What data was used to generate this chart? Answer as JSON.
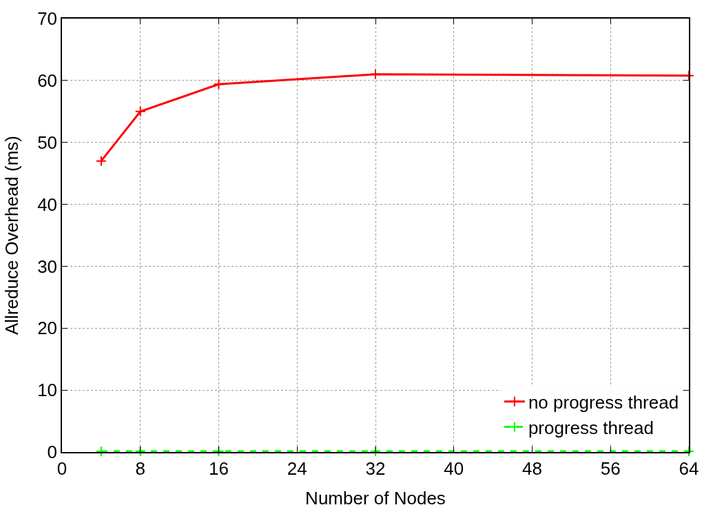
{
  "chart_data": {
    "type": "line",
    "xlabel": "Number of Nodes",
    "ylabel": "Allreduce Overhead (ms)",
    "x": [
      4,
      8,
      16,
      32,
      64
    ],
    "series": [
      {
        "name": "no progress thread",
        "color": "#ff0000",
        "values": [
          47,
          55,
          59.4,
          61,
          60.8
        ],
        "marker": "cross",
        "line_style": "solid"
      },
      {
        "name": "progress thread",
        "color": "#00ff00",
        "values": [
          0.1,
          0.1,
          0.1,
          0.1,
          0.1
        ],
        "marker": "cross",
        "line_style": "dashed"
      }
    ],
    "xlim": [
      0,
      64
    ],
    "xticks": [
      0,
      8,
      16,
      24,
      32,
      40,
      48,
      56,
      64
    ],
    "ylim": [
      0,
      70
    ],
    "yticks": [
      0,
      10,
      20,
      30,
      40,
      50,
      60,
      70
    ],
    "grid": true,
    "legend": "bottom right"
  }
}
